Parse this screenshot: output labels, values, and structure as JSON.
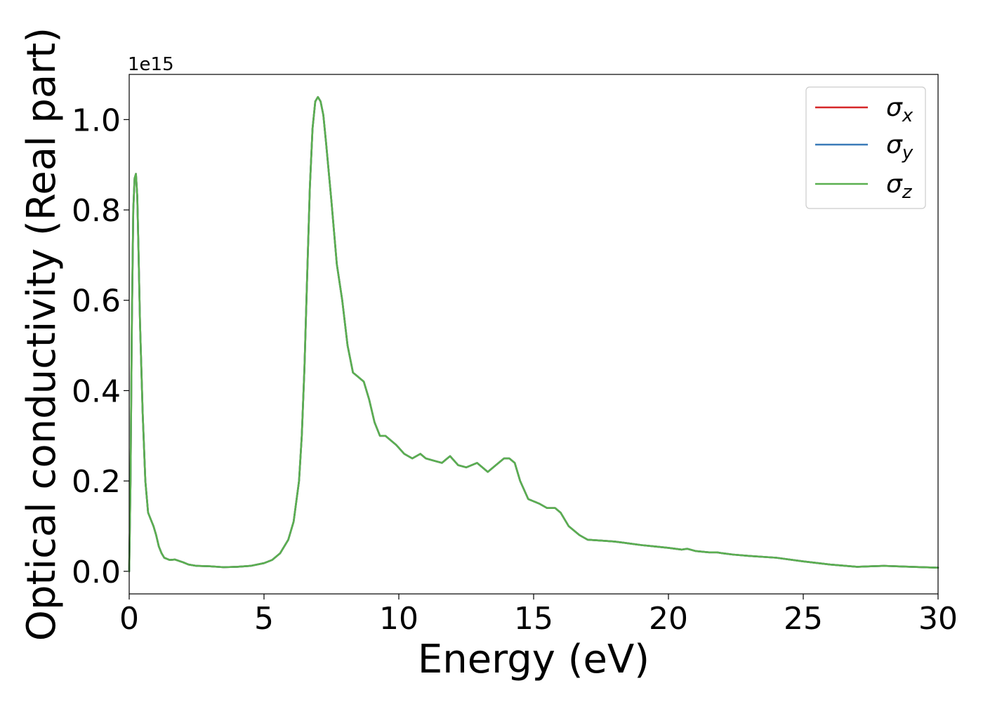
{
  "chart_data": {
    "type": "line",
    "xlabel": "Energy (eV)",
    "ylabel": "Optical conductivity (Real part)",
    "y_offset_label": "1e15",
    "xlim": [
      0,
      30
    ],
    "ylim": [
      -0.05,
      1.1
    ],
    "x_ticks": [
      0,
      5,
      10,
      15,
      20,
      25,
      30
    ],
    "x_tick_labels": [
      "0",
      "5",
      "10",
      "15",
      "20",
      "25",
      "30"
    ],
    "y_ticks": [
      0.0,
      0.2,
      0.4,
      0.6,
      0.8,
      1.0
    ],
    "y_tick_labels": [
      "0.0",
      "0.2",
      "0.4",
      "0.6",
      "0.8",
      "1.0"
    ],
    "grid": false,
    "legend_position": "top-right",
    "series": [
      {
        "name": "σ",
        "subscript": "x",
        "color": "#d62728"
      },
      {
        "name": "σ",
        "subscript": "y",
        "color": "#3a7ab8"
      },
      {
        "name": "σ",
        "subscript": "z",
        "color": "#5aaf50"
      }
    ],
    "x": [
      0,
      0.05,
      0.1,
      0.15,
      0.2,
      0.25,
      0.3,
      0.35,
      0.4,
      0.5,
      0.6,
      0.7,
      0.8,
      0.9,
      1.0,
      1.1,
      1.2,
      1.3,
      1.5,
      1.7,
      2.0,
      2.2,
      2.5,
      3.0,
      3.5,
      4.0,
      4.5,
      5.0,
      5.3,
      5.6,
      5.9,
      6.1,
      6.3,
      6.4,
      6.5,
      6.6,
      6.7,
      6.8,
      6.9,
      7.0,
      7.1,
      7.2,
      7.3,
      7.5,
      7.7,
      7.9,
      8.1,
      8.3,
      8.5,
      8.7,
      8.9,
      9.1,
      9.3,
      9.5,
      9.7,
      9.9,
      10.2,
      10.5,
      10.8,
      11.0,
      11.3,
      11.6,
      11.9,
      12.2,
      12.5,
      12.9,
      13.1,
      13.3,
      13.6,
      13.9,
      14.1,
      14.3,
      14.5,
      14.8,
      15.2,
      15.5,
      15.8,
      16.0,
      16.3,
      16.7,
      17.0,
      17.5,
      18.0,
      18.5,
      19.0,
      19.5,
      20.0,
      20.5,
      20.7,
      21.0,
      21.5,
      21.8,
      22.0,
      22.4,
      23.0,
      24.0,
      25.0,
      26.0,
      27.0,
      27.5,
      28.0,
      29.0,
      30.0
    ],
    "values": [
      0.0,
      0.2,
      0.55,
      0.8,
      0.87,
      0.88,
      0.83,
      0.7,
      0.55,
      0.35,
      0.2,
      0.13,
      0.115,
      0.1,
      0.08,
      0.055,
      0.04,
      0.03,
      0.025,
      0.026,
      0.02,
      0.015,
      0.012,
      0.011,
      0.009,
      0.01,
      0.012,
      0.018,
      0.025,
      0.04,
      0.07,
      0.11,
      0.2,
      0.3,
      0.45,
      0.65,
      0.85,
      0.98,
      1.04,
      1.05,
      1.04,
      1.01,
      0.95,
      0.82,
      0.68,
      0.6,
      0.5,
      0.44,
      0.43,
      0.42,
      0.38,
      0.33,
      0.3,
      0.3,
      0.29,
      0.28,
      0.26,
      0.25,
      0.26,
      0.25,
      0.245,
      0.24,
      0.255,
      0.235,
      0.23,
      0.24,
      0.23,
      0.22,
      0.235,
      0.25,
      0.25,
      0.24,
      0.2,
      0.16,
      0.15,
      0.14,
      0.14,
      0.13,
      0.1,
      0.08,
      0.07,
      0.068,
      0.066,
      0.062,
      0.058,
      0.055,
      0.052,
      0.048,
      0.05,
      0.045,
      0.042,
      0.042,
      0.04,
      0.037,
      0.034,
      0.03,
      0.022,
      0.015,
      0.01,
      0.011,
      0.012,
      0.01,
      0.008
    ]
  }
}
